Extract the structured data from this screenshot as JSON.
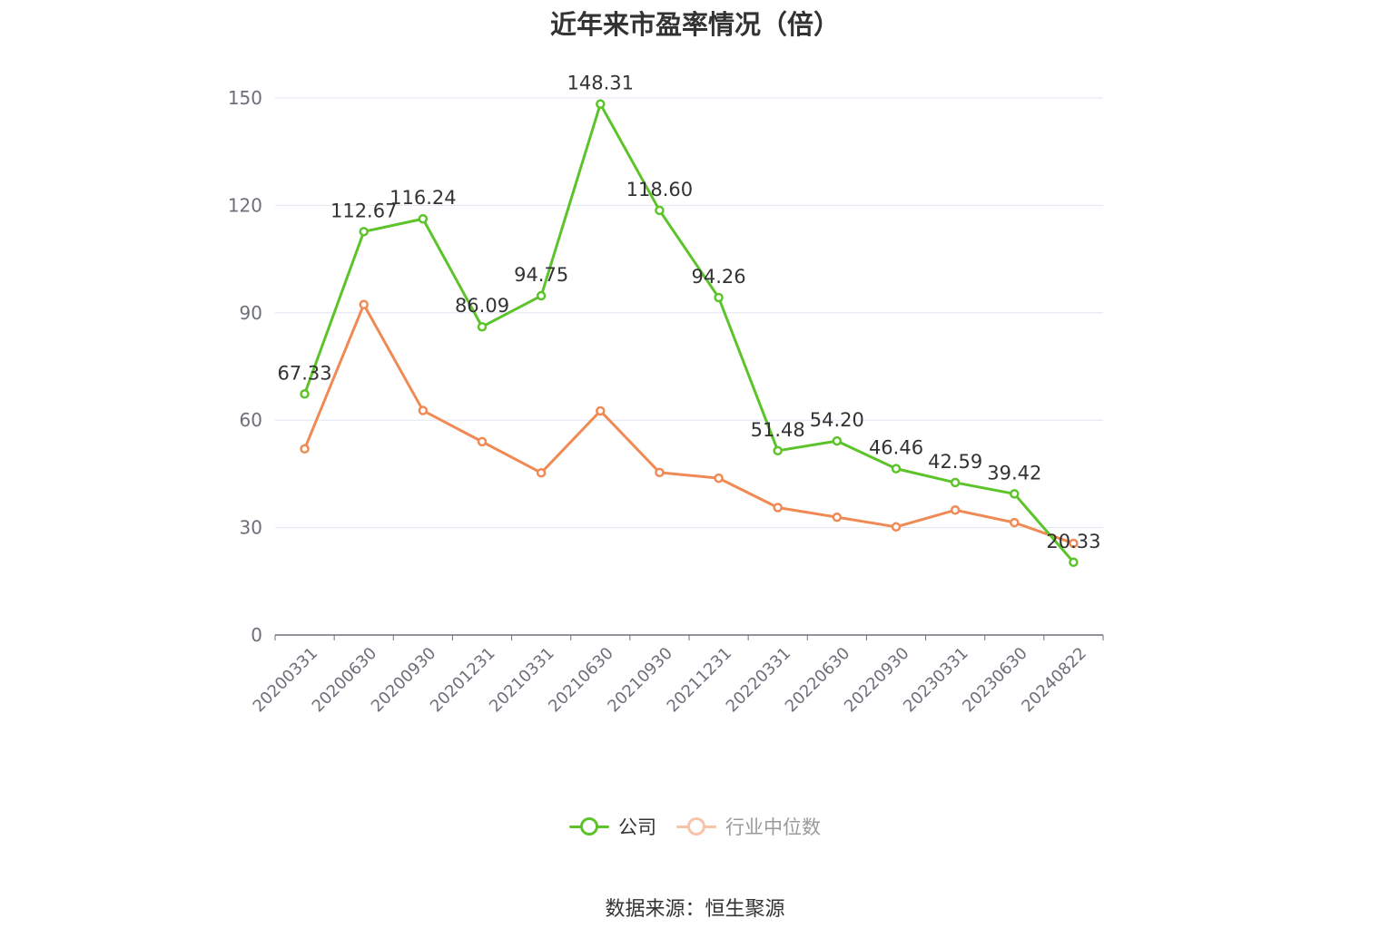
{
  "colors": {
    "company": "#5cc42a",
    "industry": "#f08a55",
    "grid": "#e0e6f1",
    "axis": "#6e7079",
    "tick_text": "#6e7079",
    "label_text": "#333333"
  },
  "source": "数据来源：恒生聚源",
  "chart_data": {
    "type": "line",
    "title": "近年来市盈率情况（倍）",
    "xlabel": "",
    "ylabel": "",
    "ylim": [
      0,
      150
    ],
    "yticks": [
      0,
      30,
      60,
      90,
      120,
      150
    ],
    "grid": true,
    "legend_position": "bottom",
    "categories": [
      "20200331",
      "20200630",
      "20200930",
      "20201231",
      "20210331",
      "20210630",
      "20210930",
      "20211231",
      "20220331",
      "20220630",
      "20220930",
      "20230331",
      "20230630",
      "20240822"
    ],
    "series": [
      {
        "name": "公司",
        "color": "#5cc42a",
        "show_labels": true,
        "values": [
          67.33,
          112.67,
          116.24,
          86.09,
          94.75,
          148.31,
          118.6,
          94.26,
          51.48,
          54.2,
          46.46,
          42.59,
          39.42,
          20.33
        ]
      },
      {
        "name": "行业中位数",
        "color": "#f08a55",
        "show_labels": false,
        "values": [
          52.0,
          92.3,
          62.7,
          54.0,
          45.3,
          62.6,
          45.4,
          43.8,
          35.6,
          32.9,
          30.2,
          34.9,
          31.4,
          25.6
        ]
      }
    ]
  }
}
